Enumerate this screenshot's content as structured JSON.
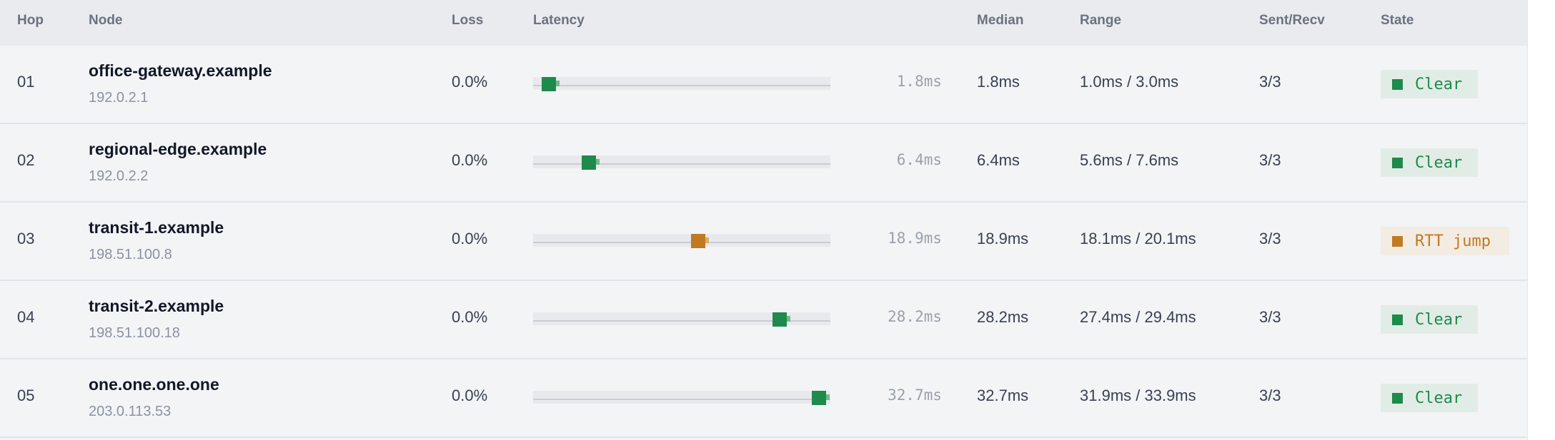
{
  "colors": {
    "ok": "#1e8a4c",
    "ok_strip": "#73b98b",
    "ok_badge_bg": "#e2ece6",
    "warn": "#c07a22",
    "warn_strip": "#e0aa6a",
    "warn_badge_bg": "#f3ece3"
  },
  "headers": {
    "hop": "Hop",
    "node": "Node",
    "loss": "Loss",
    "latency": "Latency",
    "median": "Median",
    "range": "Range",
    "sent_recv": "Sent/Recv",
    "state": "State"
  },
  "latency_scale_max_ms": 34.0,
  "rows": [
    {
      "hop": "01",
      "node_name": "office-gateway.example",
      "node_ip": "192.0.2.1",
      "loss": "0.0%",
      "latency_ms": 1.8,
      "min_ms": 1.0,
      "max_ms": 3.0,
      "latency_label": "1.8ms",
      "median": "1.8ms",
      "range": "1.0ms / 3.0ms",
      "sent_recv": "3/3",
      "state": "Clear",
      "status": "ok"
    },
    {
      "hop": "02",
      "node_name": "regional-edge.example",
      "node_ip": "192.0.2.2",
      "loss": "0.0%",
      "latency_ms": 6.4,
      "min_ms": 5.6,
      "max_ms": 7.6,
      "latency_label": "6.4ms",
      "median": "6.4ms",
      "range": "5.6ms / 7.6ms",
      "sent_recv": "3/3",
      "state": "Clear",
      "status": "ok"
    },
    {
      "hop": "03",
      "node_name": "transit-1.example",
      "node_ip": "198.51.100.8",
      "loss": "0.0%",
      "latency_ms": 18.9,
      "min_ms": 18.1,
      "max_ms": 20.1,
      "latency_label": "18.9ms",
      "median": "18.9ms",
      "range": "18.1ms / 20.1ms",
      "sent_recv": "3/3",
      "state": "RTT jump",
      "status": "warn"
    },
    {
      "hop": "04",
      "node_name": "transit-2.example",
      "node_ip": "198.51.100.18",
      "loss": "0.0%",
      "latency_ms": 28.2,
      "min_ms": 27.4,
      "max_ms": 29.4,
      "latency_label": "28.2ms",
      "median": "28.2ms",
      "range": "27.4ms / 29.4ms",
      "sent_recv": "3/3",
      "state": "Clear",
      "status": "ok"
    },
    {
      "hop": "05",
      "node_name": "one.one.one.one",
      "node_ip": "203.0.113.53",
      "loss": "0.0%",
      "latency_ms": 32.7,
      "min_ms": 31.9,
      "max_ms": 33.9,
      "latency_label": "32.7ms",
      "median": "32.7ms",
      "range": "31.9ms / 33.9ms",
      "sent_recv": "3/3",
      "state": "Clear",
      "status": "ok"
    }
  ]
}
